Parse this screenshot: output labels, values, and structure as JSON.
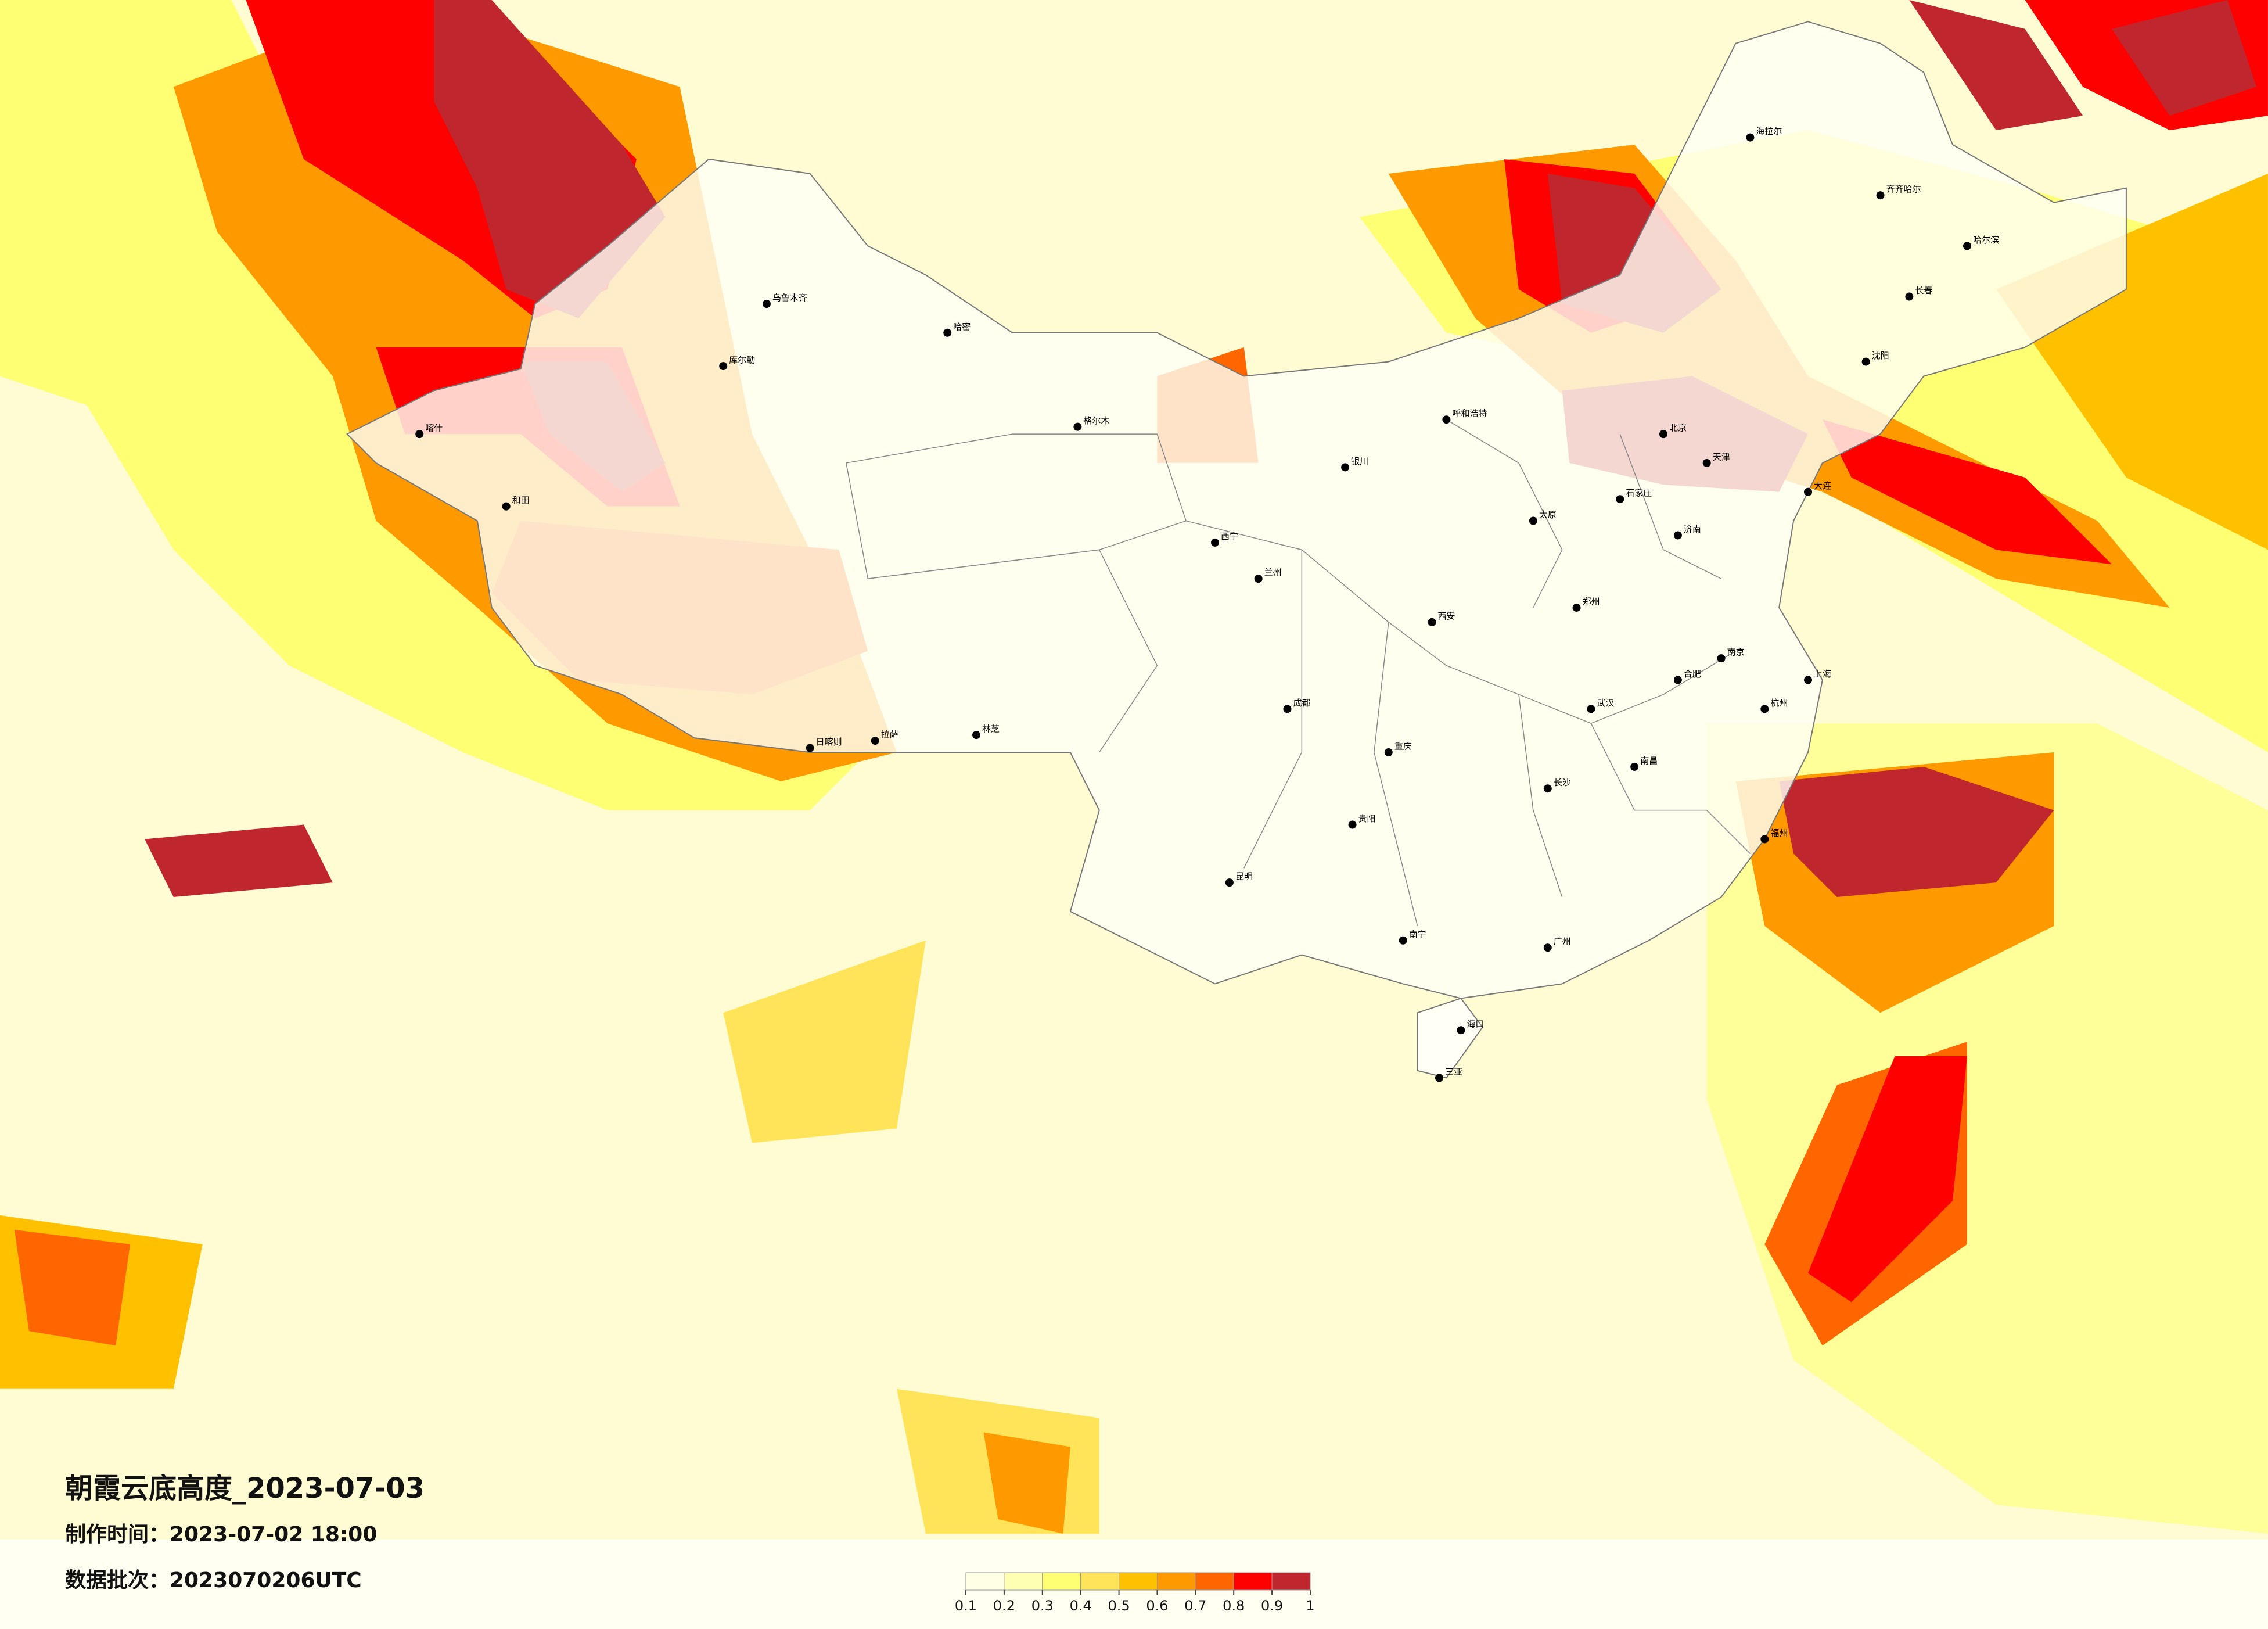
{
  "title": "朝霞云底高度_2023-07-03",
  "made_time": "制作时间：2023-07-02 18:00",
  "data_batch": "数据批次：2023070206UTC",
  "colorbar": {
    "ticks": [
      0.1,
      0.2,
      0.3,
      0.4,
      0.5,
      0.6,
      0.7,
      0.8,
      0.9,
      1
    ],
    "colors": [
      "#ffffe6",
      "#ffffb3",
      "#ffff73",
      "#ffe45a",
      "#ffc000",
      "#ff9900",
      "#ff6600",
      "#ff0000",
      "#c0262e"
    ]
  },
  "cities": [
    "乌鲁木齐",
    "库尔勒",
    "哈密",
    "喀什",
    "和田",
    "拉萨",
    "日喀则",
    "林芝",
    "格尔木",
    "西宁",
    "兰州",
    "银川",
    "呼和浩特",
    "北京",
    "天津",
    "石家庄",
    "太原",
    "济南",
    "郑州",
    "西安",
    "成都",
    "重庆",
    "贵阳",
    "昆明",
    "南宁",
    "广州",
    "长沙",
    "武汉",
    "南昌",
    "合肥",
    "南京",
    "上海",
    "杭州",
    "福州",
    "海口",
    "三亚",
    "哈尔滨",
    "长春",
    "沈阳",
    "大连",
    "齐齐哈尔",
    "海拉尔"
  ]
}
